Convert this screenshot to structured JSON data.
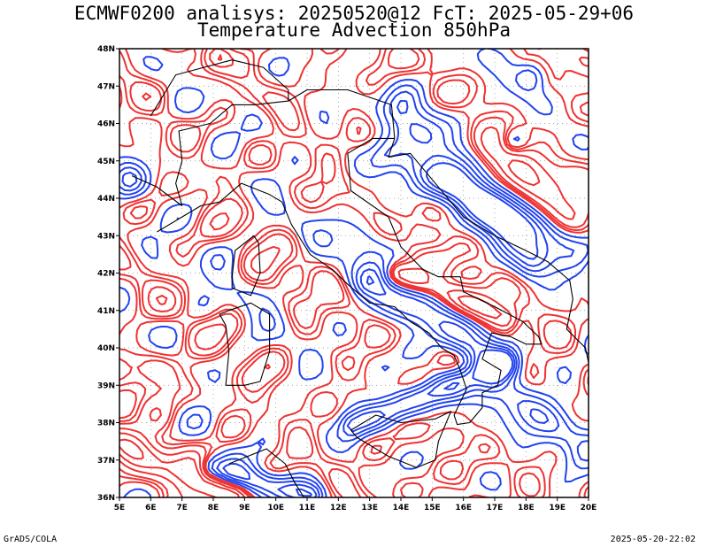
{
  "title": {
    "line1": "ECMWF0200 analisys: 20250520@12 FcT: 2025-05-29+06",
    "line2": "Temperature Advection 850hPa"
  },
  "axes": {
    "lon_labels": [
      "5E",
      "6E",
      "7E",
      "8E",
      "9E",
      "10E",
      "11E",
      "12E",
      "13E",
      "14E",
      "15E",
      "16E",
      "17E",
      "18E",
      "19E",
      "20E"
    ],
    "lat_labels": [
      "36N",
      "37N",
      "38N",
      "39N",
      "40N",
      "41N",
      "42N",
      "43N",
      "44N",
      "45N",
      "46N",
      "47N",
      "48N"
    ]
  },
  "contours": {
    "warm_color": "#ee3333",
    "cold_color": "#2244ee",
    "land_color": "#000000",
    "grid_color": "#888888"
  },
  "footer": {
    "left": "GrADS/COLA",
    "right": "2025-05-20-22:02"
  }
}
